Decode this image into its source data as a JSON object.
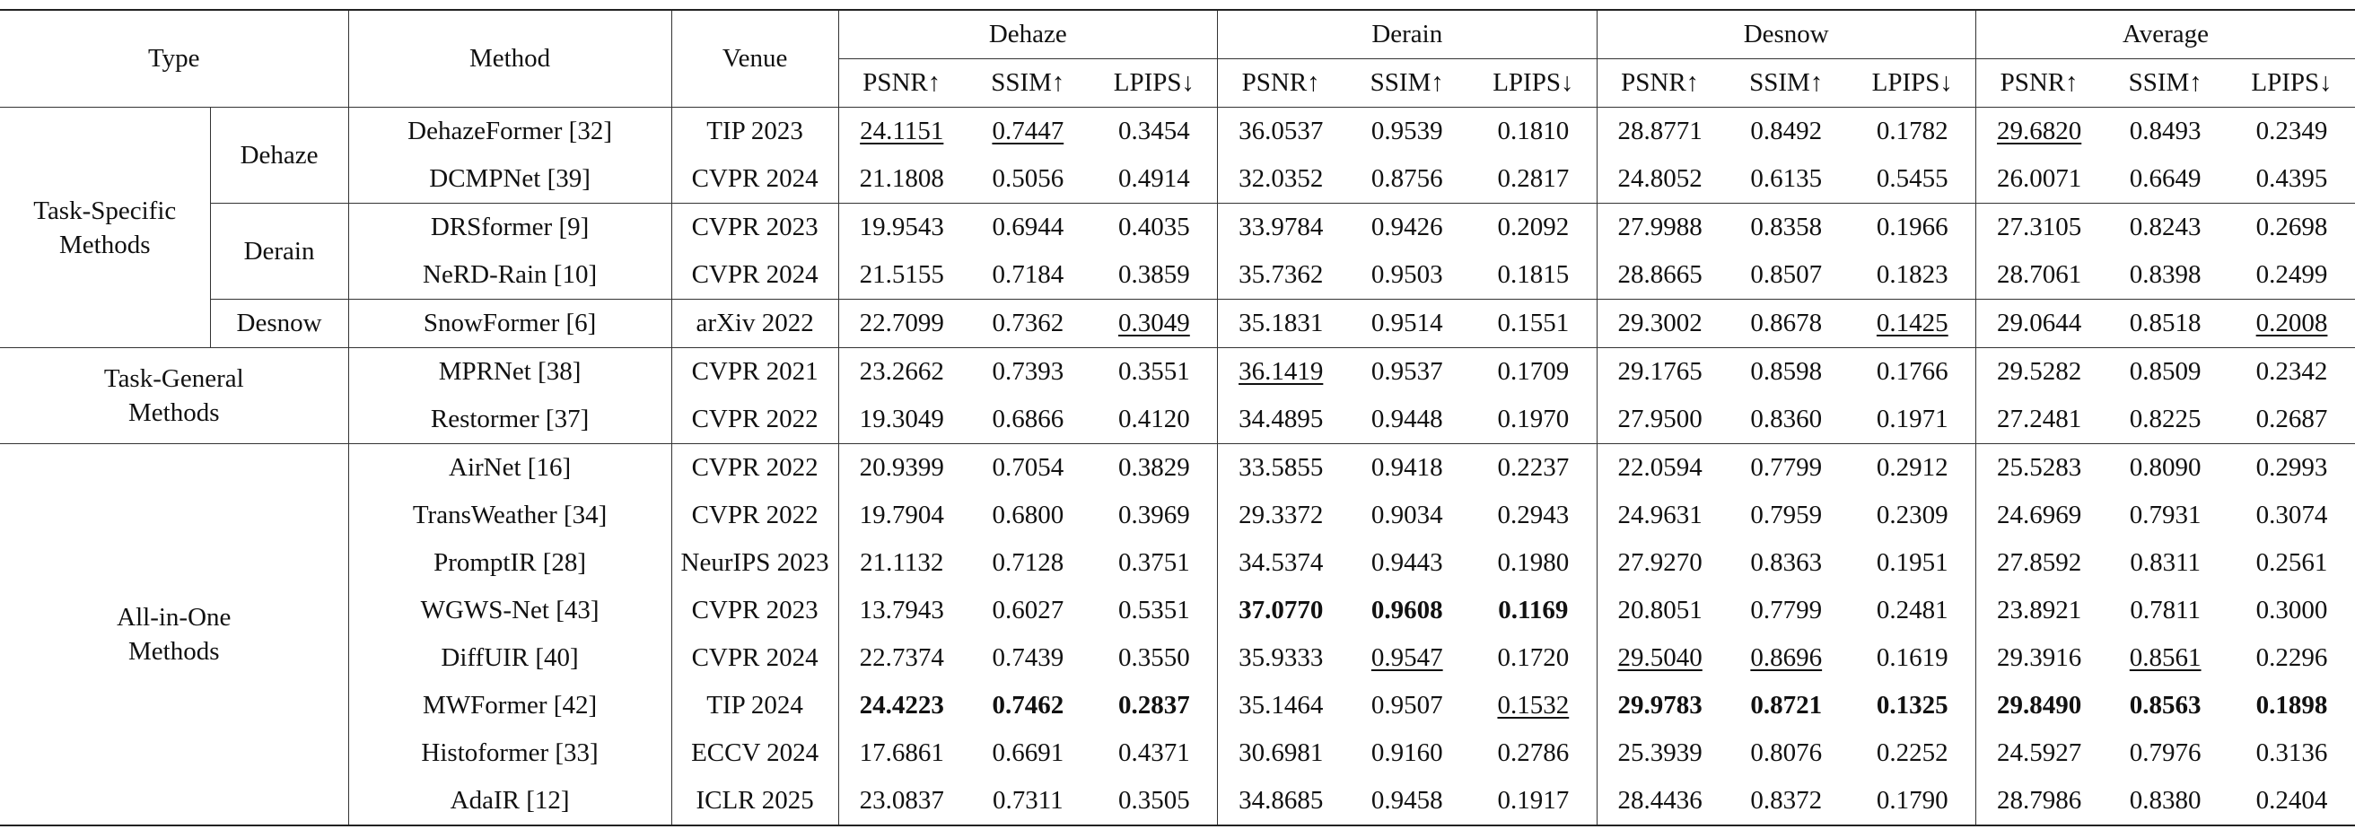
{
  "header": {
    "type": "Type",
    "method": "Method",
    "venue": "Venue",
    "tasks": [
      "Dehaze",
      "Derain",
      "Desnow",
      "Average"
    ],
    "metrics": [
      "PSNR↑",
      "SSIM↑",
      "LPIPS↓"
    ]
  },
  "groups": [
    {
      "label": "Task-Specific Methods",
      "subgroups": [
        {
          "label": "Dehaze",
          "rows": [
            {
              "method": "DehazeFormer [32]",
              "venue": "TIP 2023",
              "scores": [
                "24.1151",
                "0.7447",
                "0.3454",
                "36.0537",
                "0.9539",
                "0.1810",
                "28.8771",
                "0.8492",
                "0.1782",
                "29.6820",
                "0.8493",
                "0.2349"
              ],
              "underline": [
                0,
                1,
                9
              ]
            },
            {
              "method": "DCMPNet [39]",
              "venue": "CVPR 2024",
              "scores": [
                "21.1808",
                "0.5056",
                "0.4914",
                "32.0352",
                "0.8756",
                "0.2817",
                "24.8052",
                "0.6135",
                "0.5455",
                "26.0071",
                "0.6649",
                "0.4395"
              ]
            }
          ]
        },
        {
          "label": "Derain",
          "rows": [
            {
              "method": "DRSformer [9]",
              "venue": "CVPR 2023",
              "scores": [
                "19.9543",
                "0.6944",
                "0.4035",
                "33.9784",
                "0.9426",
                "0.2092",
                "27.9988",
                "0.8358",
                "0.1966",
                "27.3105",
                "0.8243",
                "0.2698"
              ]
            },
            {
              "method": "NeRD-Rain [10]",
              "venue": "CVPR 2024",
              "scores": [
                "21.5155",
                "0.7184",
                "0.3859",
                "35.7362",
                "0.9503",
                "0.1815",
                "28.8665",
                "0.8507",
                "0.1823",
                "28.7061",
                "0.8398",
                "0.2499"
              ]
            }
          ]
        },
        {
          "label": "Desnow",
          "rows": [
            {
              "method": "SnowFormer [6]",
              "venue": "arXiv 2022",
              "scores": [
                "22.7099",
                "0.7362",
                "0.3049",
                "35.1831",
                "0.9514",
                "0.1551",
                "29.3002",
                "0.8678",
                "0.1425",
                "29.0644",
                "0.8518",
                "0.2008"
              ],
              "underline": [
                2,
                8,
                11
              ]
            }
          ]
        }
      ]
    },
    {
      "label": "Task-General Methods",
      "rows": [
        {
          "method": "MPRNet [38]",
          "venue": "CVPR 2021",
          "scores": [
            "23.2662",
            "0.7393",
            "0.3551",
            "36.1419",
            "0.9537",
            "0.1709",
            "29.1765",
            "0.8598",
            "0.1766",
            "29.5282",
            "0.8509",
            "0.2342"
          ],
          "underline": [
            3
          ]
        },
        {
          "method": "Restormer [37]",
          "venue": "CVPR 2022",
          "scores": [
            "19.3049",
            "0.6866",
            "0.4120",
            "34.4895",
            "0.9448",
            "0.1970",
            "27.9500",
            "0.8360",
            "0.1971",
            "27.2481",
            "0.8225",
            "0.2687"
          ]
        }
      ]
    },
    {
      "label": "All-in-One Methods",
      "rows": [
        {
          "method": "AirNet [16]",
          "venue": "CVPR 2022",
          "scores": [
            "20.9399",
            "0.7054",
            "0.3829",
            "33.5855",
            "0.9418",
            "0.2237",
            "22.0594",
            "0.7799",
            "0.2912",
            "25.5283",
            "0.8090",
            "0.2993"
          ]
        },
        {
          "method": "TransWeather [34]",
          "venue": "CVPR 2022",
          "scores": [
            "19.7904",
            "0.6800",
            "0.3969",
            "29.3372",
            "0.9034",
            "0.2943",
            "24.9631",
            "0.7959",
            "0.2309",
            "24.6969",
            "0.7931",
            "0.3074"
          ]
        },
        {
          "method": "PromptIR [28]",
          "venue": "NeurIPS 2023",
          "scores": [
            "21.1132",
            "0.7128",
            "0.3751",
            "34.5374",
            "0.9443",
            "0.1980",
            "27.9270",
            "0.8363",
            "0.1951",
            "27.8592",
            "0.8311",
            "0.2561"
          ]
        },
        {
          "method": "WGWS-Net [43]",
          "venue": "CVPR 2023",
          "scores": [
            "13.7943",
            "0.6027",
            "0.5351",
            "37.0770",
            "0.9608",
            "0.1169",
            "20.8051",
            "0.7799",
            "0.2481",
            "23.8921",
            "0.7811",
            "0.3000"
          ],
          "bold": [
            3,
            4,
            5
          ]
        },
        {
          "method": "DiffUIR [40]",
          "venue": "CVPR 2024",
          "scores": [
            "22.7374",
            "0.7439",
            "0.3550",
            "35.9333",
            "0.9547",
            "0.1720",
            "29.5040",
            "0.8696",
            "0.1619",
            "29.3916",
            "0.8561",
            "0.2296"
          ],
          "underline": [
            4,
            6,
            7,
            10
          ]
        },
        {
          "method": "MWFormer [42]",
          "venue": "TIP 2024",
          "scores": [
            "24.4223",
            "0.7462",
            "0.2837",
            "35.1464",
            "0.9507",
            "0.1532",
            "29.9783",
            "0.8721",
            "0.1325",
            "29.8490",
            "0.8563",
            "0.1898"
          ],
          "bold": [
            0,
            1,
            2,
            6,
            7,
            8,
            9,
            10,
            11
          ],
          "underline": [
            5
          ]
        },
        {
          "method": "Histoformer [33]",
          "venue": "ECCV 2024",
          "scores": [
            "17.6861",
            "0.6691",
            "0.4371",
            "30.6981",
            "0.9160",
            "0.2786",
            "25.3939",
            "0.8076",
            "0.2252",
            "24.5927",
            "0.7976",
            "0.3136"
          ]
        },
        {
          "method": "AdaIR [12]",
          "venue": "ICLR 2025",
          "scores": [
            "23.0837",
            "0.7311",
            "0.3505",
            "34.8685",
            "0.9458",
            "0.1917",
            "28.4436",
            "0.8372",
            "0.1790",
            "28.7986",
            "0.8380",
            "0.2404"
          ]
        }
      ]
    }
  ]
}
